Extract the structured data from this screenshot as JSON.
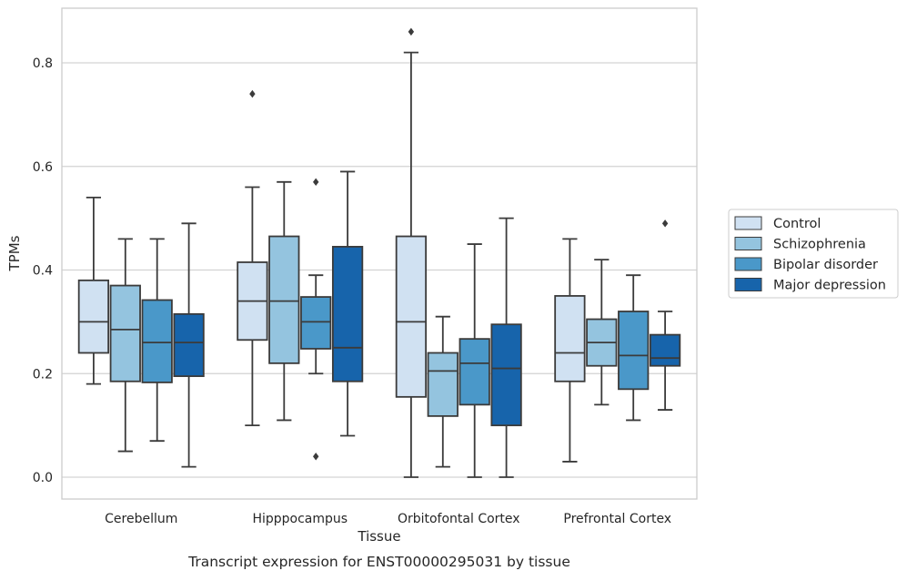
{
  "chart_data": {
    "type": "box",
    "title": "",
    "caption": "Transcript expression for ENST00000295031 by tissue",
    "xlabel": "Tissue",
    "ylabel": "TPMs",
    "ylim": [
      -0.04,
      0.91
    ],
    "yticks": [
      0.0,
      0.2,
      0.4,
      0.6,
      0.8
    ],
    "ytick_labels": [
      "0.0",
      "0.2",
      "0.4",
      "0.6",
      "0.8"
    ],
    "grid": "horizontal",
    "legend_position": "right",
    "categories": [
      "Cerebellum",
      "Hipppocampus",
      "Orbitofontal Cortex",
      "Prefrontal Cortex"
    ],
    "series": [
      {
        "name": "Control",
        "color": "#d0e1f2",
        "boxes": [
          {
            "whisker_low": 0.18,
            "q1": 0.24,
            "median": 0.3,
            "q3": 0.38,
            "whisker_high": 0.54,
            "outliers": []
          },
          {
            "whisker_low": 0.1,
            "q1": 0.265,
            "median": 0.34,
            "q3": 0.415,
            "whisker_high": 0.56,
            "outliers": [
              0.74
            ]
          },
          {
            "whisker_low": 0.0,
            "q1": 0.155,
            "median": 0.3,
            "q3": 0.465,
            "whisker_high": 0.82,
            "outliers": [
              0.86
            ]
          },
          {
            "whisker_low": 0.03,
            "q1": 0.185,
            "median": 0.24,
            "q3": 0.35,
            "whisker_high": 0.46,
            "outliers": []
          }
        ]
      },
      {
        "name": "Schizophrenia",
        "color": "#94c4df",
        "boxes": [
          {
            "whisker_low": 0.05,
            "q1": 0.185,
            "median": 0.285,
            "q3": 0.37,
            "whisker_high": 0.46,
            "outliers": []
          },
          {
            "whisker_low": 0.11,
            "q1": 0.22,
            "median": 0.34,
            "q3": 0.465,
            "whisker_high": 0.57,
            "outliers": []
          },
          {
            "whisker_low": 0.02,
            "q1": 0.118,
            "median": 0.205,
            "q3": 0.24,
            "whisker_high": 0.31,
            "outliers": []
          },
          {
            "whisker_low": 0.14,
            "q1": 0.215,
            "median": 0.26,
            "q3": 0.305,
            "whisker_high": 0.42,
            "outliers": []
          }
        ]
      },
      {
        "name": "Bipolar disorder",
        "color": "#4a98c9",
        "boxes": [
          {
            "whisker_low": 0.07,
            "q1": 0.183,
            "median": 0.26,
            "q3": 0.342,
            "whisker_high": 0.46,
            "outliers": []
          },
          {
            "whisker_low": 0.2,
            "q1": 0.248,
            "median": 0.3,
            "q3": 0.348,
            "whisker_high": 0.39,
            "outliers": [
              0.04,
              0.57
            ]
          },
          {
            "whisker_low": 0.0,
            "q1": 0.14,
            "median": 0.22,
            "q3": 0.267,
            "whisker_high": 0.45,
            "outliers": []
          },
          {
            "whisker_low": 0.11,
            "q1": 0.17,
            "median": 0.235,
            "q3": 0.32,
            "whisker_high": 0.39,
            "outliers": []
          }
        ]
      },
      {
        "name": "Major depression",
        "color": "#1764ab",
        "boxes": [
          {
            "whisker_low": 0.02,
            "q1": 0.195,
            "median": 0.26,
            "q3": 0.315,
            "whisker_high": 0.49,
            "outliers": []
          },
          {
            "whisker_low": 0.08,
            "q1": 0.185,
            "median": 0.25,
            "q3": 0.445,
            "whisker_high": 0.59,
            "outliers": []
          },
          {
            "whisker_low": 0.0,
            "q1": 0.1,
            "median": 0.21,
            "q3": 0.295,
            "whisker_high": 0.5,
            "outliers": []
          },
          {
            "whisker_low": 0.13,
            "q1": 0.215,
            "median": 0.23,
            "q3": 0.275,
            "whisker_high": 0.32,
            "outliers": [
              0.49
            ]
          }
        ]
      }
    ]
  }
}
